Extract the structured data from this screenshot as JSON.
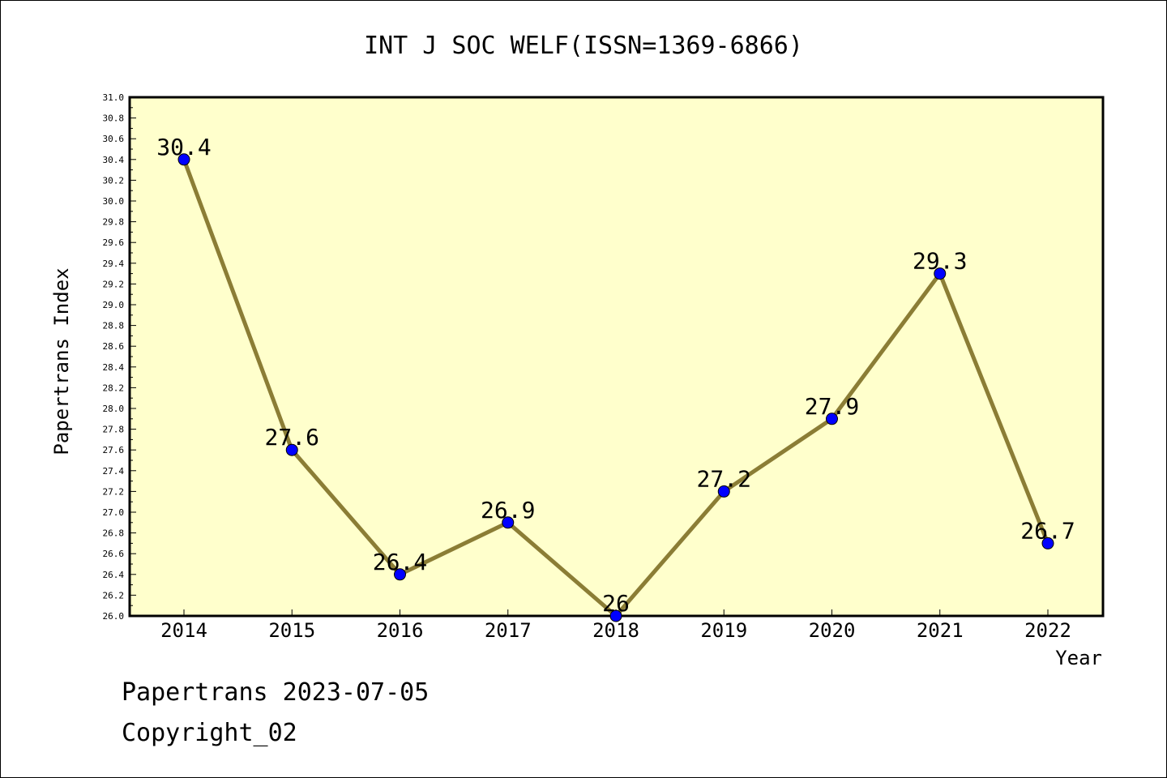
{
  "colors": {
    "plot_background": "#ffffcc",
    "line": "#8b7d35",
    "marker": "#0000ff"
  },
  "chart_data": {
    "type": "line",
    "title": "INT J SOC WELF(ISSN=1369-6866)",
    "xlabel": "Year",
    "ylabel": "Papertrans Index",
    "categories": [
      "2014",
      "2015",
      "2016",
      "2017",
      "2018",
      "2019",
      "2020",
      "2021",
      "2022"
    ],
    "values": [
      30.4,
      27.6,
      26.4,
      26.9,
      26.0,
      27.2,
      27.9,
      29.3,
      26.7
    ],
    "data_labels": [
      "30.4",
      "27.6",
      "26.4",
      "26.9",
      "26",
      "27.2",
      "27.9",
      "29.3",
      "26.7"
    ],
    "ylim": [
      26.0,
      31.0
    ],
    "ytick_step": 0.2,
    "grid": false,
    "legend": "none"
  },
  "footer": {
    "line1": "Papertrans 2023-07-05",
    "line2": "Copyright_02"
  }
}
